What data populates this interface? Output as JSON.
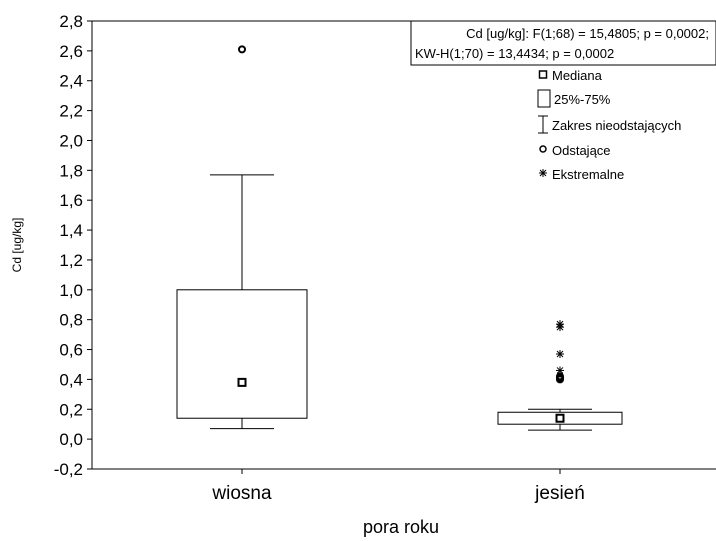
{
  "chart_data": {
    "type": "boxplot",
    "xlabel": "pora roku",
    "ylabel": "Cd [ug/kg]",
    "ylim": [
      -0.2,
      2.8
    ],
    "ytick_step": 0.2,
    "categories": [
      "wiosna",
      "jesień"
    ],
    "boxes": [
      {
        "category": "wiosna",
        "median": 0.38,
        "q1": 0.14,
        "q3": 1.0,
        "whisker_low": 0.07,
        "whisker_high": 1.77,
        "outliers": [
          2.61
        ],
        "extremes": []
      },
      {
        "category": "jesień",
        "median": 0.14,
        "q1": 0.1,
        "q3": 0.18,
        "whisker_low": 0.06,
        "whisker_high": 0.2,
        "outliers": [
          0.4,
          0.41,
          0.42
        ],
        "extremes": [
          0.46,
          0.57,
          0.75,
          0.77
        ]
      }
    ],
    "stats_lines": [
      "Cd [ug/kg]:   F(1;68) = 15,4805; p = 0,0002;",
      "KW-H(1;70) = 13,4434; p = 0,0002"
    ],
    "legend": {
      "placement": "top-right",
      "items": [
        {
          "key": "median",
          "label": "Mediana"
        },
        {
          "key": "box",
          "label": "25%-75%"
        },
        {
          "key": "whisker",
          "label": "Zakres nieodstających"
        },
        {
          "key": "outlier",
          "label": "Odstające"
        },
        {
          "key": "extreme",
          "label": "Ekstremalne"
        }
      ]
    },
    "grid": false,
    "decimal_separator": ","
  }
}
